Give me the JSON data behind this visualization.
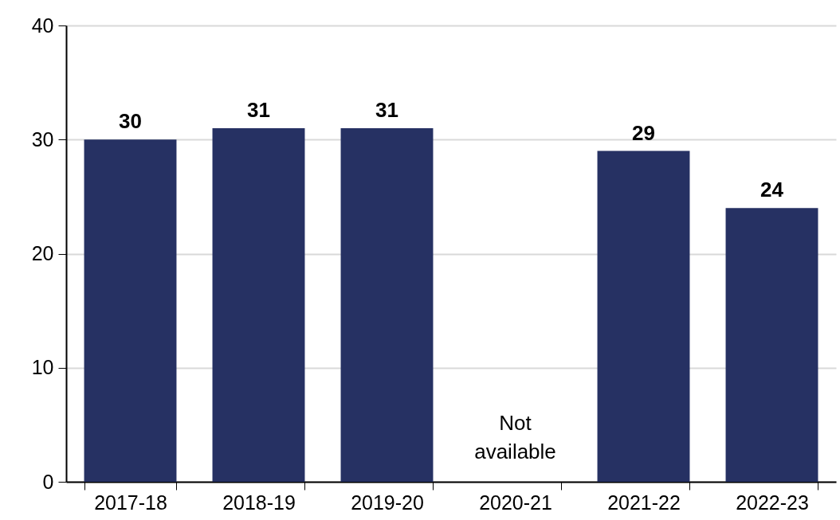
{
  "chart_data": {
    "type": "bar",
    "categories": [
      "2017-18",
      "2018-19",
      "2019-20",
      "2020-21",
      "2021-22",
      "2022-23"
    ],
    "values": [
      30,
      31,
      31,
      null,
      29,
      24
    ],
    "color": "#263163",
    "ylim": [
      0,
      40
    ],
    "yticks": [
      0,
      10,
      20,
      30,
      40
    ],
    "grid": "y",
    "data_labels": true,
    "annotations": [
      "Not available"
    ]
  }
}
